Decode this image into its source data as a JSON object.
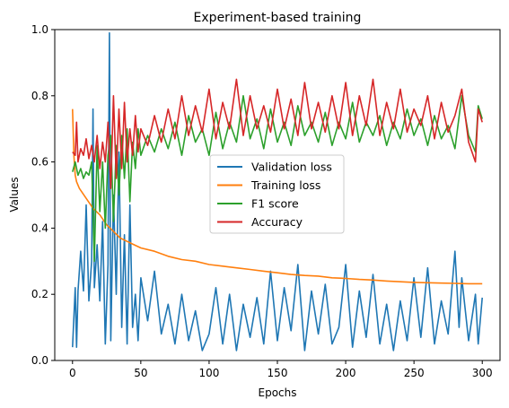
{
  "chart_data": {
    "type": "line",
    "title": "Experiment-based training",
    "xlabel": "Epochs",
    "ylabel": "Values",
    "xlim": [
      -13,
      313
    ],
    "ylim": [
      0,
      1
    ],
    "xticks": [
      0,
      50,
      100,
      150,
      200,
      250,
      300
    ],
    "yticks": [
      0.0,
      0.2,
      0.4,
      0.6,
      0.8,
      1.0
    ],
    "xtick_labels": [
      "0",
      "50",
      "100",
      "150",
      "200",
      "250",
      "300"
    ],
    "ytick_labels": [
      "0.0",
      "0.2",
      "0.4",
      "0.6",
      "0.8",
      "1.0"
    ],
    "legend_position": "center",
    "grid": false,
    "series": [
      {
        "name": "Validation loss",
        "color": "#1f77b4",
        "x": [
          0,
          2,
          3,
          4,
          6,
          8,
          10,
          12,
          14,
          15,
          16,
          18,
          20,
          22,
          24,
          26,
          27,
          28,
          30,
          32,
          34,
          36,
          38,
          40,
          42,
          44,
          46,
          48,
          50,
          55,
          60,
          65,
          70,
          75,
          80,
          85,
          90,
          95,
          100,
          105,
          110,
          115,
          120,
          125,
          130,
          135,
          140,
          145,
          150,
          155,
          160,
          165,
          170,
          175,
          180,
          185,
          190,
          195,
          200,
          205,
          210,
          215,
          220,
          225,
          230,
          235,
          240,
          245,
          250,
          255,
          260,
          265,
          270,
          275,
          280,
          283,
          285,
          290,
          295,
          297,
          300
        ],
        "values": [
          0.04,
          0.22,
          0.04,
          0.21,
          0.33,
          0.21,
          0.47,
          0.18,
          0.3,
          0.76,
          0.22,
          0.35,
          0.18,
          0.42,
          0.05,
          0.29,
          0.99,
          0.06,
          0.5,
          0.2,
          0.63,
          0.1,
          0.38,
          0.05,
          0.47,
          0.1,
          0.2,
          0.06,
          0.25,
          0.12,
          0.27,
          0.08,
          0.17,
          0.05,
          0.2,
          0.06,
          0.15,
          0.03,
          0.08,
          0.22,
          0.05,
          0.2,
          0.03,
          0.17,
          0.07,
          0.19,
          0.05,
          0.27,
          0.06,
          0.22,
          0.09,
          0.29,
          0.03,
          0.21,
          0.08,
          0.23,
          0.05,
          0.1,
          0.29,
          0.04,
          0.21,
          0.07,
          0.26,
          0.05,
          0.17,
          0.03,
          0.18,
          0.06,
          0.25,
          0.07,
          0.28,
          0.05,
          0.18,
          0.08,
          0.33,
          0.1,
          0.25,
          0.06,
          0.2,
          0.05,
          0.19
        ]
      },
      {
        "name": "Training loss",
        "color": "#ff7f0e",
        "x": [
          0,
          1,
          2,
          3,
          5,
          10,
          15,
          20,
          25,
          30,
          35,
          40,
          45,
          50,
          60,
          70,
          80,
          90,
          100,
          110,
          120,
          130,
          140,
          150,
          160,
          170,
          180,
          190,
          200,
          210,
          220,
          230,
          240,
          250,
          260,
          270,
          280,
          290,
          300
        ],
        "values": [
          0.76,
          0.62,
          0.56,
          0.54,
          0.52,
          0.49,
          0.46,
          0.44,
          0.41,
          0.39,
          0.37,
          0.36,
          0.35,
          0.34,
          0.33,
          0.315,
          0.305,
          0.3,
          0.29,
          0.285,
          0.28,
          0.275,
          0.27,
          0.265,
          0.26,
          0.257,
          0.255,
          0.25,
          0.248,
          0.245,
          0.243,
          0.24,
          0.238,
          0.236,
          0.235,
          0.234,
          0.233,
          0.232,
          0.232
        ]
      },
      {
        "name": "F1 score",
        "color": "#2ca02c",
        "x": [
          0,
          2,
          4,
          6,
          8,
          10,
          12,
          14,
          16,
          18,
          20,
          22,
          24,
          26,
          28,
          30,
          32,
          34,
          36,
          38,
          40,
          42,
          44,
          46,
          48,
          50,
          55,
          60,
          65,
          70,
          75,
          80,
          85,
          90,
          95,
          100,
          105,
          110,
          115,
          120,
          125,
          130,
          135,
          140,
          145,
          150,
          155,
          160,
          165,
          170,
          175,
          180,
          185,
          190,
          195,
          200,
          205,
          210,
          215,
          220,
          225,
          230,
          235,
          240,
          245,
          250,
          255,
          260,
          265,
          270,
          275,
          280,
          285,
          290,
          295,
          297,
          300
        ],
        "values": [
          0.57,
          0.6,
          0.56,
          0.58,
          0.55,
          0.57,
          0.56,
          0.6,
          0.3,
          0.65,
          0.45,
          0.6,
          0.4,
          0.62,
          0.68,
          0.42,
          0.65,
          0.5,
          0.68,
          0.55,
          0.7,
          0.48,
          0.66,
          0.58,
          0.7,
          0.62,
          0.68,
          0.63,
          0.7,
          0.64,
          0.72,
          0.62,
          0.74,
          0.66,
          0.7,
          0.62,
          0.75,
          0.64,
          0.72,
          0.66,
          0.8,
          0.67,
          0.73,
          0.64,
          0.76,
          0.66,
          0.72,
          0.65,
          0.77,
          0.68,
          0.72,
          0.66,
          0.75,
          0.65,
          0.72,
          0.67,
          0.78,
          0.66,
          0.72,
          0.68,
          0.74,
          0.65,
          0.72,
          0.67,
          0.76,
          0.68,
          0.73,
          0.65,
          0.74,
          0.67,
          0.71,
          0.64,
          0.8,
          0.68,
          0.63,
          0.77,
          0.73
        ]
      },
      {
        "name": "Accuracy",
        "color": "#d62728",
        "x": [
          0,
          2,
          3,
          4,
          6,
          8,
          10,
          12,
          14,
          16,
          18,
          20,
          22,
          24,
          26,
          28,
          30,
          32,
          34,
          36,
          38,
          40,
          42,
          44,
          46,
          48,
          50,
          55,
          60,
          65,
          70,
          75,
          80,
          85,
          90,
          95,
          100,
          105,
          110,
          115,
          120,
          125,
          130,
          135,
          140,
          145,
          150,
          155,
          160,
          165,
          170,
          175,
          180,
          185,
          190,
          195,
          200,
          205,
          210,
          215,
          220,
          225,
          230,
          235,
          240,
          245,
          250,
          255,
          260,
          265,
          270,
          275,
          280,
          285,
          290,
          295,
          297,
          300
        ],
        "values": [
          0.63,
          0.62,
          0.72,
          0.6,
          0.64,
          0.62,
          0.67,
          0.61,
          0.65,
          0.6,
          0.68,
          0.58,
          0.66,
          0.6,
          0.72,
          0.52,
          0.8,
          0.55,
          0.76,
          0.58,
          0.78,
          0.6,
          0.7,
          0.62,
          0.74,
          0.63,
          0.7,
          0.65,
          0.74,
          0.66,
          0.76,
          0.67,
          0.8,
          0.68,
          0.77,
          0.69,
          0.82,
          0.67,
          0.78,
          0.7,
          0.85,
          0.68,
          0.8,
          0.7,
          0.77,
          0.69,
          0.82,
          0.7,
          0.79,
          0.68,
          0.84,
          0.7,
          0.78,
          0.69,
          0.8,
          0.7,
          0.84,
          0.68,
          0.8,
          0.71,
          0.85,
          0.68,
          0.78,
          0.7,
          0.82,
          0.69,
          0.76,
          0.71,
          0.8,
          0.67,
          0.78,
          0.69,
          0.74,
          0.82,
          0.66,
          0.6,
          0.76,
          0.72
        ]
      }
    ]
  }
}
